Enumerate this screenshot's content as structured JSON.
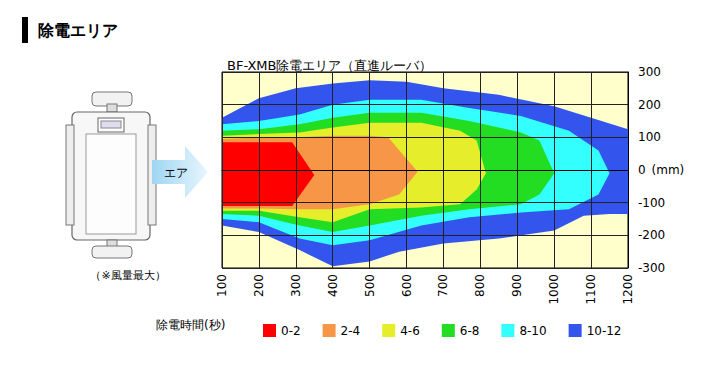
{
  "page_title": "除電エリア",
  "figure": {
    "arrow_label": "エア",
    "note": "（※風量最大）"
  },
  "chart_data": {
    "type": "area_zones",
    "title": "BF-XMB除電エリア（直進ルーバ）",
    "x_label": "(mm)",
    "legend_title": "除電時間(秒)",
    "legend": "bottom",
    "grid": true,
    "xlim": [
      100,
      1200
    ],
    "xticks": [
      100,
      200,
      300,
      400,
      500,
      600,
      700,
      800,
      900,
      1000,
      1100,
      1200
    ],
    "ylim": [
      -300,
      300
    ],
    "yticks": [
      -300,
      -200,
      -100,
      0,
      100,
      200,
      300
    ],
    "series": [
      {
        "name": "0-2",
        "color": "#ff0000",
        "points": [
          [
            100,
            85
          ],
          [
            290,
            85
          ],
          [
            350,
            -15
          ],
          [
            290,
            -110
          ],
          [
            100,
            -110
          ]
        ]
      },
      {
        "name": "2-4",
        "color": "#f79646",
        "points": [
          [
            100,
            95
          ],
          [
            200,
            100
          ],
          [
            300,
            100
          ],
          [
            400,
            105
          ],
          [
            500,
            105
          ],
          [
            550,
            100
          ],
          [
            630,
            -5
          ],
          [
            580,
            -75
          ],
          [
            500,
            -105
          ],
          [
            400,
            -120
          ],
          [
            300,
            -120
          ],
          [
            200,
            -118
          ],
          [
            100,
            -118
          ]
        ]
      },
      {
        "name": "4-6",
        "color": "#e6ee2b",
        "points": [
          [
            100,
            105
          ],
          [
            200,
            110
          ],
          [
            310,
            115
          ],
          [
            400,
            130
          ],
          [
            500,
            145
          ],
          [
            640,
            145
          ],
          [
            745,
            120
          ],
          [
            790,
            90
          ],
          [
            815,
            -10
          ],
          [
            790,
            -60
          ],
          [
            745,
            -105
          ],
          [
            640,
            -115
          ],
          [
            500,
            -120
          ],
          [
            400,
            -160
          ],
          [
            310,
            -145
          ],
          [
            200,
            -125
          ],
          [
            100,
            -125
          ]
        ]
      },
      {
        "name": "6-8",
        "color": "#22dd22",
        "points": [
          [
            100,
            120
          ],
          [
            200,
            125
          ],
          [
            310,
            140
          ],
          [
            400,
            160
          ],
          [
            500,
            175
          ],
          [
            640,
            175
          ],
          [
            770,
            150
          ],
          [
            910,
            115
          ],
          [
            960,
            90
          ],
          [
            1000,
            -10
          ],
          [
            960,
            -75
          ],
          [
            910,
            -105
          ],
          [
            770,
            -120
          ],
          [
            640,
            -140
          ],
          [
            500,
            -170
          ],
          [
            400,
            -190
          ],
          [
            310,
            -170
          ],
          [
            200,
            -140
          ],
          [
            100,
            -135
          ]
        ]
      },
      {
        "name": "8-10",
        "color": "#33ffff",
        "points": [
          [
            100,
            140
          ],
          [
            200,
            150
          ],
          [
            310,
            170
          ],
          [
            400,
            200
          ],
          [
            500,
            215
          ],
          [
            640,
            215
          ],
          [
            770,
            190
          ],
          [
            910,
            165
          ],
          [
            1040,
            120
          ],
          [
            1120,
            60
          ],
          [
            1150,
            -10
          ],
          [
            1120,
            -75
          ],
          [
            1040,
            -120
          ],
          [
            910,
            -130
          ],
          [
            770,
            -145
          ],
          [
            640,
            -170
          ],
          [
            500,
            -215
          ],
          [
            400,
            -230
          ],
          [
            310,
            -210
          ],
          [
            200,
            -160
          ],
          [
            100,
            -150
          ]
        ]
      },
      {
        "name": "10-12",
        "color": "#3355ee",
        "points": [
          [
            100,
            160
          ],
          [
            200,
            220
          ],
          [
            300,
            250
          ],
          [
            400,
            265
          ],
          [
            500,
            275
          ],
          [
            600,
            270
          ],
          [
            700,
            250
          ],
          [
            850,
            230
          ],
          [
            1000,
            195
          ],
          [
            1100,
            160
          ],
          [
            1200,
            125
          ],
          [
            1200,
            -135
          ],
          [
            1150,
            -135
          ],
          [
            1080,
            -140
          ],
          [
            1000,
            -185
          ],
          [
            850,
            -210
          ],
          [
            700,
            -225
          ],
          [
            580,
            -250
          ],
          [
            500,
            -280
          ],
          [
            400,
            -295
          ],
          [
            310,
            -245
          ],
          [
            200,
            -190
          ],
          [
            100,
            -170
          ]
        ]
      }
    ]
  }
}
